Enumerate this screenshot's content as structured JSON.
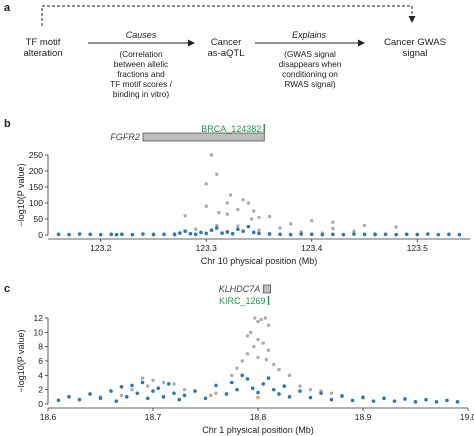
{
  "panel_a": {
    "letter": "a",
    "nodes": {
      "tf_motif": [
        "TF motif",
        "alteration"
      ],
      "cancer_aqtl": [
        "Cancer",
        "as-aQTL"
      ],
      "cancer_gwas": [
        "Cancer GWAS",
        "signal"
      ]
    },
    "edges": {
      "causes": {
        "label": "Causes",
        "note": [
          "(Correlation",
          "between allelic",
          "fractions and",
          "TF motif scores /",
          "binding in vitro)"
        ]
      },
      "explains": {
        "label": "Explains",
        "note": [
          "(GWAS signal",
          "disappears when",
          "conditioning on",
          "RWAS signal)"
        ]
      }
    }
  },
  "colors": {
    "significant": "#2878b5",
    "background": "#ababab",
    "orange": "#e8a35a",
    "peak_label": "#1a9a4a",
    "gene_box": "#bdbdbd",
    "text": "#222222"
  },
  "chart_data": [
    {
      "panel": "b",
      "type": "scatter",
      "title": "",
      "xlabel": "Chr 10 physical position (Mb)",
      "ylabel": "−log10(P value)",
      "xlim": [
        123.15,
        123.55
      ],
      "ylim": [
        0,
        250
      ],
      "xticks": [
        123.2,
        123.3,
        123.4,
        123.5
      ],
      "yticks": [
        0,
        50,
        100,
        150,
        200,
        250
      ],
      "gene": {
        "name": "FGFR2",
        "start": 123.24,
        "end": 123.355
      },
      "peak_label": {
        "name": "BRCA_124382",
        "position": 123.355
      },
      "points_grey": [
        [
          123.305,
          260
        ],
        [
          123.31,
          190
        ],
        [
          123.3,
          160
        ],
        [
          123.323,
          125
        ],
        [
          123.335,
          110
        ],
        [
          123.32,
          100
        ],
        [
          123.34,
          100
        ],
        [
          123.3,
          90
        ],
        [
          123.33,
          80
        ],
        [
          123.345,
          75
        ],
        [
          123.312,
          70
        ],
        [
          123.32,
          65
        ],
        [
          123.28,
          60
        ],
        [
          123.36,
          58
        ],
        [
          123.35,
          55
        ],
        [
          123.343,
          50
        ],
        [
          123.4,
          45
        ],
        [
          123.42,
          40
        ],
        [
          123.38,
          35
        ],
        [
          123.45,
          30
        ],
        [
          123.31,
          30
        ],
        [
          123.33,
          28
        ],
        [
          123.48,
          25
        ],
        [
          123.37,
          22
        ],
        [
          123.42,
          20
        ],
        [
          123.29,
          18
        ],
        [
          123.35,
          15
        ],
        [
          123.44,
          12
        ],
        [
          123.39,
          10
        ],
        [
          123.32,
          8
        ],
        [
          123.41,
          6
        ],
        [
          123.36,
          5
        ],
        [
          123.46,
          4
        ],
        [
          123.27,
          4
        ],
        [
          123.22,
          3
        ],
        [
          123.25,
          3
        ],
        [
          123.5,
          2
        ]
      ],
      "points_blue": [
        [
          123.16,
          2
        ],
        [
          123.17,
          1
        ],
        [
          123.18,
          3
        ],
        [
          123.19,
          2
        ],
        [
          123.2,
          1
        ],
        [
          123.21,
          2
        ],
        [
          123.215,
          1
        ],
        [
          123.22,
          2
        ],
        [
          123.23,
          1
        ],
        [
          123.24,
          3
        ],
        [
          123.25,
          1
        ],
        [
          123.26,
          2
        ],
        [
          123.27,
          1
        ],
        [
          123.275,
          6
        ],
        [
          123.28,
          12
        ],
        [
          123.285,
          4
        ],
        [
          123.29,
          2
        ],
        [
          123.295,
          8
        ],
        [
          123.3,
          5
        ],
        [
          123.305,
          15
        ],
        [
          123.31,
          22
        ],
        [
          123.315,
          6
        ],
        [
          123.32,
          10
        ],
        [
          123.325,
          4
        ],
        [
          123.33,
          18
        ],
        [
          123.335,
          12
        ],
        [
          123.34,
          26
        ],
        [
          123.345,
          8
        ],
        [
          123.35,
          5
        ],
        [
          123.36,
          3
        ],
        [
          123.37,
          2
        ],
        [
          123.38,
          1
        ],
        [
          123.39,
          3
        ],
        [
          123.4,
          2
        ],
        [
          123.41,
          1
        ],
        [
          123.42,
          2
        ],
        [
          123.43,
          1
        ],
        [
          123.44,
          3
        ],
        [
          123.45,
          2
        ],
        [
          123.46,
          1
        ],
        [
          123.47,
          2
        ],
        [
          123.48,
          1
        ],
        [
          123.49,
          2
        ],
        [
          123.5,
          1
        ],
        [
          123.51,
          3
        ],
        [
          123.52,
          1
        ],
        [
          123.53,
          2
        ],
        [
          123.54,
          1
        ]
      ]
    },
    {
      "panel": "c",
      "type": "scatter",
      "title": "",
      "xlabel": "Chr 1 physical position (Mb)",
      "ylabel": "−log10(P value)",
      "xlim": [
        18.6,
        19.0
      ],
      "ylim": [
        0,
        12
      ],
      "xticks": [
        18.6,
        18.7,
        18.8,
        18.9,
        19.0
      ],
      "yticks": [
        0,
        2,
        4,
        6,
        8,
        10,
        12
      ],
      "gene": {
        "name": "KLHDC7A",
        "start": 18.805,
        "end": 18.812
      },
      "peak_label": {
        "name": "KIRC_1269",
        "position": 18.81
      },
      "points_grey": [
        [
          18.797,
          12.0
        ],
        [
          18.803,
          11.8
        ],
        [
          18.807,
          12.1
        ],
        [
          18.8,
          11.5
        ],
        [
          18.81,
          11.0
        ],
        [
          18.793,
          10.0
        ],
        [
          18.79,
          9.5
        ],
        [
          18.8,
          9.0
        ],
        [
          18.805,
          8.5
        ],
        [
          18.796,
          8.0
        ],
        [
          18.81,
          7.5
        ],
        [
          18.79,
          7.0
        ],
        [
          18.8,
          6.5
        ],
        [
          18.785,
          6.0
        ],
        [
          18.808,
          6.2
        ],
        [
          18.815,
          5.5
        ],
        [
          18.78,
          5.0
        ],
        [
          18.82,
          4.8
        ],
        [
          18.775,
          4.0
        ],
        [
          18.83,
          4.0
        ],
        [
          18.69,
          3.6
        ],
        [
          18.7,
          3.3
        ],
        [
          18.71,
          3.0
        ],
        [
          18.72,
          2.8
        ],
        [
          18.695,
          2.5
        ],
        [
          18.73,
          2.0
        ],
        [
          18.74,
          1.8
        ],
        [
          18.76,
          1.5
        ],
        [
          18.84,
          2.5
        ],
        [
          18.85,
          2.0
        ],
        [
          18.86,
          1.8
        ],
        [
          18.87,
          1.5
        ],
        [
          18.88,
          1.2
        ],
        [
          18.9,
          1.0
        ],
        [
          18.92,
          0.8
        ],
        [
          18.65,
          1.0
        ],
        [
          18.67,
          1.2
        ],
        [
          18.68,
          2.0
        ]
      ],
      "points_blue": [
        [
          18.61,
          0.5
        ],
        [
          18.62,
          1.0
        ],
        [
          18.63,
          0.6
        ],
        [
          18.64,
          1.4
        ],
        [
          18.65,
          0.8
        ],
        [
          18.66,
          1.8
        ],
        [
          18.665,
          0.4
        ],
        [
          18.67,
          2.4
        ],
        [
          18.675,
          1.0
        ],
        [
          18.68,
          2.6
        ],
        [
          18.685,
          1.5
        ],
        [
          18.69,
          3.0
        ],
        [
          18.695,
          0.8
        ],
        [
          18.7,
          1.8
        ],
        [
          18.705,
          2.2
        ],
        [
          18.71,
          1.0
        ],
        [
          18.715,
          2.8
        ],
        [
          18.72,
          1.5
        ],
        [
          18.725,
          0.6
        ],
        [
          18.73,
          1.2
        ],
        [
          18.74,
          1.8
        ],
        [
          18.75,
          0.8
        ],
        [
          18.76,
          2.6
        ],
        [
          18.77,
          1.4
        ],
        [
          18.775,
          3.0
        ],
        [
          18.78,
          2.0
        ],
        [
          18.785,
          4.0
        ],
        [
          18.79,
          3.5
        ],
        [
          18.795,
          2.2
        ],
        [
          18.8,
          1.6
        ],
        [
          18.805,
          2.8
        ],
        [
          18.81,
          3.6
        ],
        [
          18.815,
          2.0
        ],
        [
          18.82,
          1.4
        ],
        [
          18.825,
          2.5
        ],
        [
          18.83,
          1.0
        ],
        [
          18.84,
          1.8
        ],
        [
          18.85,
          0.9
        ],
        [
          18.86,
          1.5
        ],
        [
          18.87,
          0.6
        ],
        [
          18.88,
          1.1
        ],
        [
          18.89,
          0.5
        ],
        [
          18.9,
          0.9
        ],
        [
          18.91,
          0.4
        ],
        [
          18.92,
          0.8
        ],
        [
          18.93,
          0.4
        ],
        [
          18.94,
          0.7
        ],
        [
          18.95,
          0.3
        ],
        [
          18.96,
          0.6
        ],
        [
          18.97,
          0.3
        ],
        [
          18.98,
          0.5
        ],
        [
          18.99,
          0.3
        ]
      ],
      "points_orange": [
        [
          18.755,
          1.2
        ],
        [
          18.8,
          0.9
        ]
      ]
    }
  ]
}
